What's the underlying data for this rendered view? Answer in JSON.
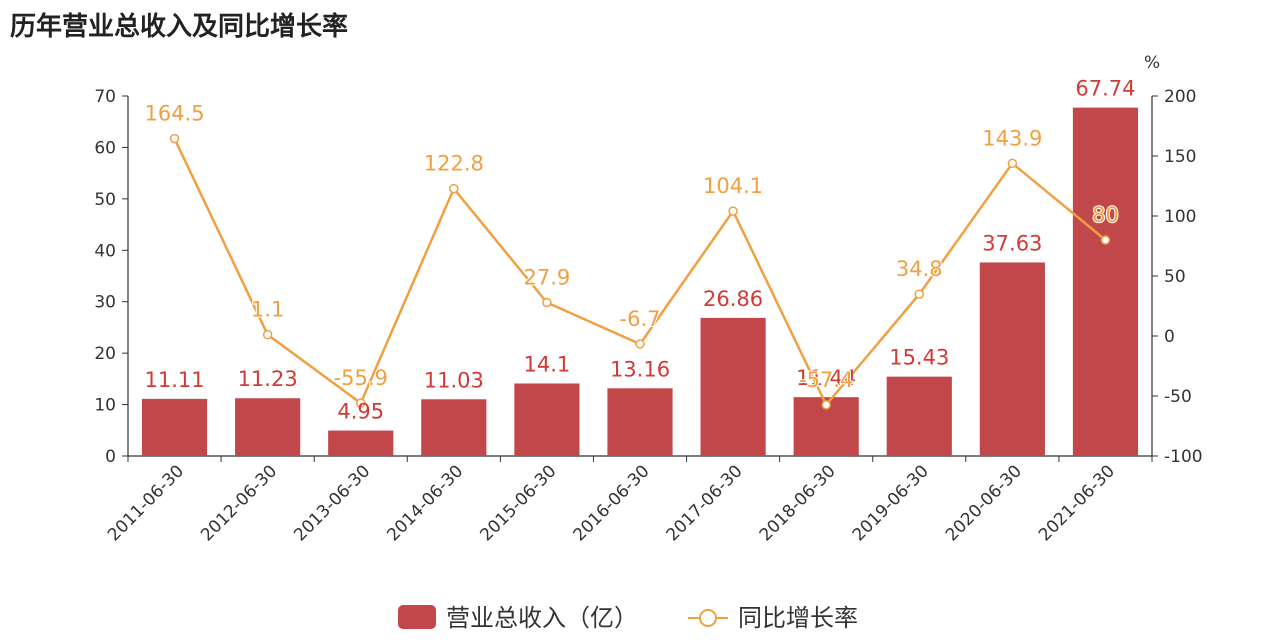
{
  "chart_data": {
    "type": "bar",
    "title": "历年营业总收入及同比增长率",
    "categories": [
      "2011-06-30",
      "2012-06-30",
      "2013-06-30",
      "2014-06-30",
      "2015-06-30",
      "2016-06-30",
      "2017-06-30",
      "2018-06-30",
      "2019-06-30",
      "2020-06-30",
      "2021-06-30"
    ],
    "series": [
      {
        "name": "营业总收入（亿）",
        "type": "bar",
        "axis": "left",
        "values": [
          11.11,
          11.23,
          4.95,
          11.03,
          14.1,
          13.16,
          26.86,
          11.44,
          15.43,
          37.63,
          67.74
        ],
        "labels": [
          "11.11",
          "11.23",
          "4.95",
          "11.03",
          "14.1",
          "13.16",
          "26.86",
          "11.44",
          "15.43",
          "37.63",
          "67.74"
        ],
        "color": "#c1474a"
      },
      {
        "name": "同比增长率",
        "type": "line",
        "axis": "right",
        "values": [
          164.5,
          1.1,
          -55.9,
          122.8,
          27.9,
          -6.7,
          104.1,
          -57.4,
          34.8,
          143.9,
          80
        ],
        "labels": [
          "164.5",
          "1.1",
          "-55.9",
          "122.8",
          "27.9",
          "-6.7",
          "104.1",
          "-57.4",
          "34.8",
          "143.9",
          "80"
        ],
        "color": "#f0a040"
      }
    ],
    "y_left": {
      "range": [
        0,
        70
      ],
      "ticks": [
        "0",
        "10",
        "20",
        "30",
        "40",
        "50",
        "60",
        "70"
      ]
    },
    "y_right": {
      "unit": "%",
      "range": [
        -100,
        200
      ],
      "ticks": [
        "-100",
        "-50",
        "0",
        "50",
        "100",
        "150",
        "200"
      ]
    },
    "grid": false,
    "legend_position": "bottom-center"
  }
}
